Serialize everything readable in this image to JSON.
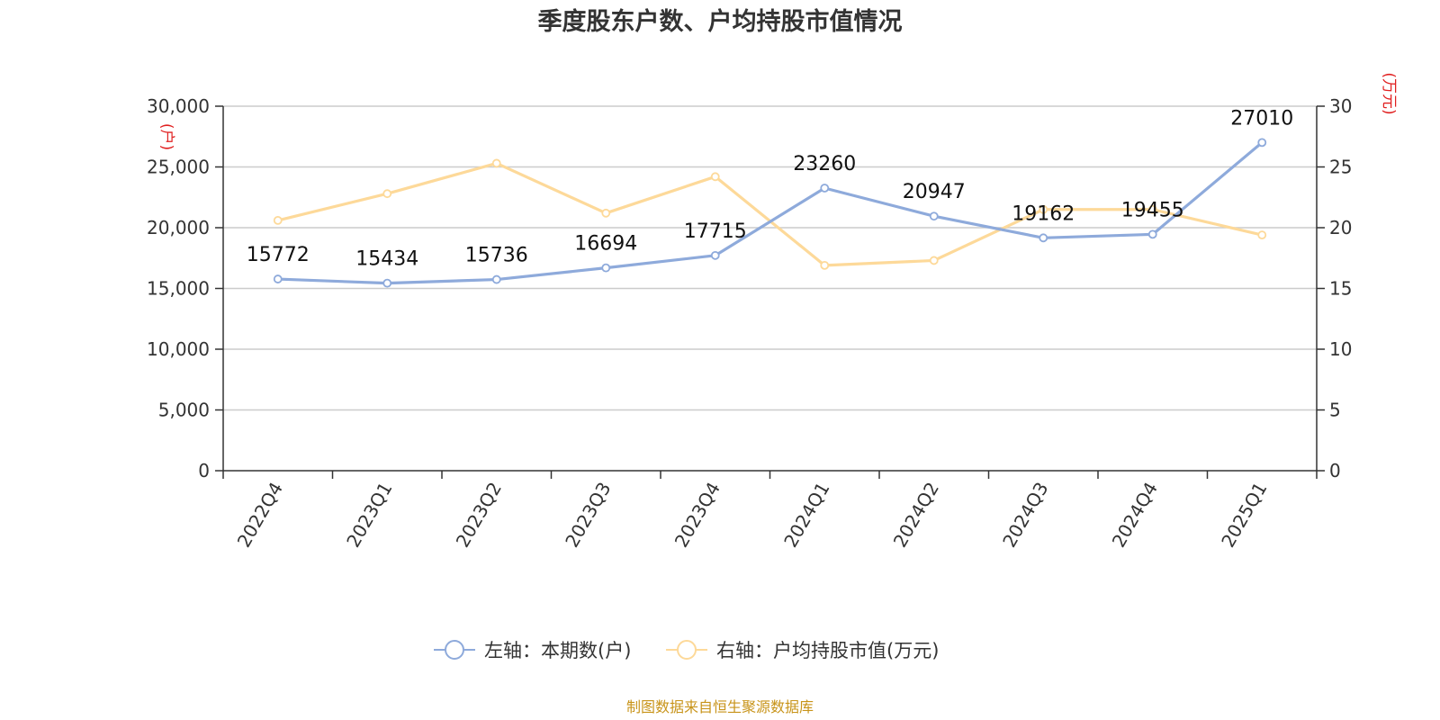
{
  "chart_data": {
    "type": "line",
    "title": "季度股东户数、户均持股市值情况",
    "categories": [
      "2022Q4",
      "2023Q1",
      "2023Q2",
      "2023Q3",
      "2023Q4",
      "2024Q1",
      "2024Q2",
      "2024Q3",
      "2024Q4",
      "2025Q1"
    ],
    "left_axis": {
      "unit": "(户)",
      "ylim": [
        0,
        30000
      ],
      "ticks": [
        "0",
        "5,000",
        "10,000",
        "15,000",
        "20,000",
        "25,000",
        "30,000"
      ],
      "tick_values": [
        0,
        5000,
        10000,
        15000,
        20000,
        25000,
        30000
      ]
    },
    "right_axis": {
      "unit": "(万元)",
      "ylim": [
        0,
        30
      ],
      "ticks": [
        "0",
        "5",
        "10",
        "15",
        "20",
        "25",
        "30"
      ],
      "tick_values": [
        0,
        5,
        10,
        15,
        20,
        25,
        30
      ]
    },
    "series": [
      {
        "name": "左轴：本期数(户)",
        "axis": "left",
        "color": "#8eaadb",
        "values": [
          15772,
          15434,
          15736,
          16694,
          17715,
          23260,
          20947,
          19162,
          19455,
          27010
        ],
        "labels": [
          "15772",
          "15434",
          "15736",
          "16694",
          "17715",
          "23260",
          "20947",
          "19162",
          "19455",
          "27010"
        ]
      },
      {
        "name": "右轴：户均持股市值(万元)",
        "axis": "right",
        "color": "#fdd999",
        "values": [
          20.6,
          22.8,
          25.3,
          21.2,
          24.2,
          16.9,
          17.3,
          21.5,
          21.5,
          19.4
        ]
      }
    ],
    "grid": true,
    "legend_position": "bottom-center",
    "unit_color": "#e02020",
    "source": "制图数据来自恒生聚源数据库",
    "source_color": "#c8941a"
  }
}
